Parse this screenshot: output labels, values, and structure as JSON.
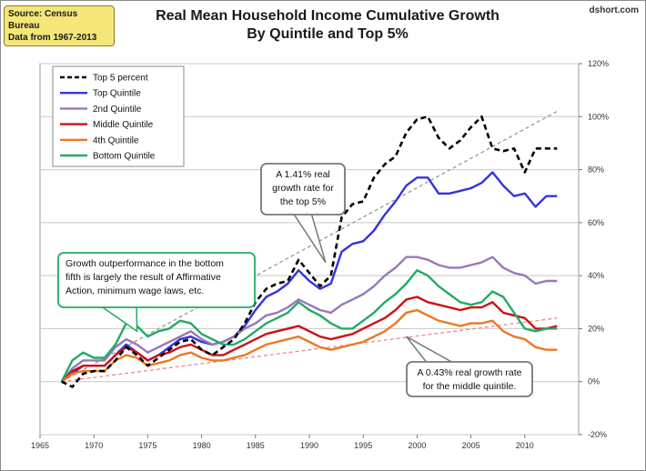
{
  "header": {
    "title_line1": "Real Mean Household Income Cumulative Growth",
    "title_line2": "By Quintile and Top 5%",
    "source_line1": "Source: Census Bureau",
    "source_line2": "Data from 1967-2013",
    "brand": "dshort.com"
  },
  "colors": {
    "top5": "#000000",
    "top_quintile": "#3333dd",
    "second_quintile": "#9977bb",
    "middle_quintile": "#cc1111",
    "fourth_quintile": "#ee7722",
    "bottom_quintile": "#22aa66",
    "trend_top5": "#999999",
    "trend_middle": "#ee8888"
  },
  "chart_data": {
    "type": "line",
    "title": "Real Mean Household Income Cumulative Growth By Quintile and Top 5%",
    "xlabel": "",
    "ylabel": "",
    "x_ticks": [
      1965,
      1970,
      1975,
      1980,
      1985,
      1990,
      1995,
      2000,
      2005,
      2010
    ],
    "y_ticks": [
      "120%",
      "100%",
      "80%",
      "60%",
      "40%",
      "20%",
      "0%",
      "-20%"
    ],
    "y_tick_values": [
      120,
      100,
      80,
      60,
      40,
      20,
      0,
      -20
    ],
    "xlim": [
      1965,
      2015
    ],
    "ylim": [
      -20,
      120
    ],
    "y_axis_position": "right",
    "legend_position": "top-left",
    "x": [
      1967,
      1968,
      1969,
      1970,
      1971,
      1972,
      1973,
      1974,
      1975,
      1976,
      1977,
      1978,
      1979,
      1980,
      1981,
      1982,
      1983,
      1984,
      1985,
      1986,
      1987,
      1988,
      1989,
      1990,
      1991,
      1992,
      1993,
      1994,
      1995,
      1996,
      1997,
      1998,
      1999,
      2000,
      2001,
      2002,
      2003,
      2004,
      2005,
      2006,
      2007,
      2008,
      2009,
      2010,
      2011,
      2012,
      2013
    ],
    "series": [
      {
        "name": "Top 5 percent",
        "key": "top5",
        "style": "dashed",
        "values": [
          0,
          -2,
          3,
          4,
          4,
          8,
          13,
          10,
          6,
          9,
          12,
          15,
          16,
          12,
          10,
          13,
          16,
          22,
          30,
          35,
          37,
          38,
          46,
          41,
          36,
          40,
          62,
          67,
          68,
          77,
          82,
          85,
          94,
          99,
          100,
          92,
          88,
          91,
          96,
          100,
          88,
          87,
          88,
          79,
          88,
          88,
          88
        ]
      },
      {
        "name": "Top Quintile",
        "key": "top_quintile",
        "style": "solid",
        "values": [
          0,
          3,
          6,
          6,
          6,
          10,
          14,
          11,
          8,
          10,
          13,
          16,
          17,
          15,
          14,
          15,
          17,
          21,
          27,
          32,
          34,
          37,
          42,
          38,
          35,
          37,
          49,
          52,
          53,
          57,
          63,
          68,
          74,
          77,
          77,
          71,
          71,
          72,
          73,
          75,
          79,
          74,
          70,
          71,
          66,
          70,
          70
        ]
      },
      {
        "name": "2nd Quintile",
        "key": "second_quintile",
        "style": "solid",
        "values": [
          0,
          5,
          8,
          8,
          8,
          13,
          16,
          14,
          11,
          13,
          15,
          17,
          19,
          16,
          14,
          15,
          17,
          20,
          22,
          25,
          26,
          28,
          31,
          29,
          27,
          26,
          29,
          31,
          33,
          36,
          40,
          43,
          47,
          47,
          46,
          44,
          43,
          43,
          44,
          45,
          47,
          43,
          41,
          40,
          37,
          38,
          38
        ]
      },
      {
        "name": "Middle Quintile",
        "key": "middle_quintile",
        "style": "solid",
        "values": [
          0,
          4,
          6,
          6,
          6,
          10,
          13,
          11,
          8,
          10,
          11,
          13,
          14,
          12,
          10,
          10,
          12,
          14,
          16,
          18,
          19,
          20,
          21,
          19,
          17,
          16,
          17,
          18,
          20,
          22,
          24,
          27,
          31,
          32,
          30,
          29,
          28,
          27,
          28,
          28,
          30,
          26,
          25,
          24,
          20,
          20,
          21
        ]
      },
      {
        "name": "4th Quintile",
        "key": "fourth_quintile",
        "style": "solid",
        "values": [
          0,
          3,
          4,
          4,
          4,
          8,
          10,
          9,
          6,
          7,
          8,
          10,
          11,
          9,
          8,
          8,
          9,
          10,
          12,
          14,
          15,
          16,
          17,
          15,
          13,
          12,
          13,
          14,
          15,
          17,
          19,
          22,
          26,
          27,
          25,
          23,
          22,
          21,
          22,
          22,
          23,
          19,
          17,
          16,
          13,
          12,
          12
        ]
      },
      {
        "name": "Bottom Quintile",
        "key": "bottom_quintile",
        "style": "solid",
        "values": [
          0,
          8,
          11,
          9,
          9,
          14,
          22,
          21,
          17,
          19,
          20,
          23,
          22,
          18,
          16,
          14,
          14,
          16,
          19,
          22,
          24,
          26,
          30,
          27,
          25,
          22,
          20,
          20,
          23,
          26,
          30,
          33,
          37,
          42,
          40,
          36,
          33,
          30,
          29,
          30,
          34,
          32,
          26,
          20,
          19,
          20,
          20
        ]
      }
    ],
    "trendlines": [
      {
        "name": "1.41% real growth rate for the top 5%",
        "key": "trend_top5",
        "start": [
          1967,
          0
        ],
        "end": [
          2013,
          102
        ]
      },
      {
        "name": "0.43% real growth rate for the middle quintile",
        "key": "trend_middle",
        "start": [
          1967,
          0
        ],
        "end": [
          2013,
          24
        ]
      }
    ],
    "annotations": {
      "top5_note": [
        "A 1.41% real",
        "growth rate for",
        "the top 5%"
      ],
      "bottom_note": [
        "Growth  outperformance  in the bottom",
        "fifth is largely the result of Affirmative",
        "Action, minimum wage laws, etc."
      ],
      "middle_note": [
        "A 0.43% real growth rate",
        "for the middle quintile."
      ]
    }
  }
}
